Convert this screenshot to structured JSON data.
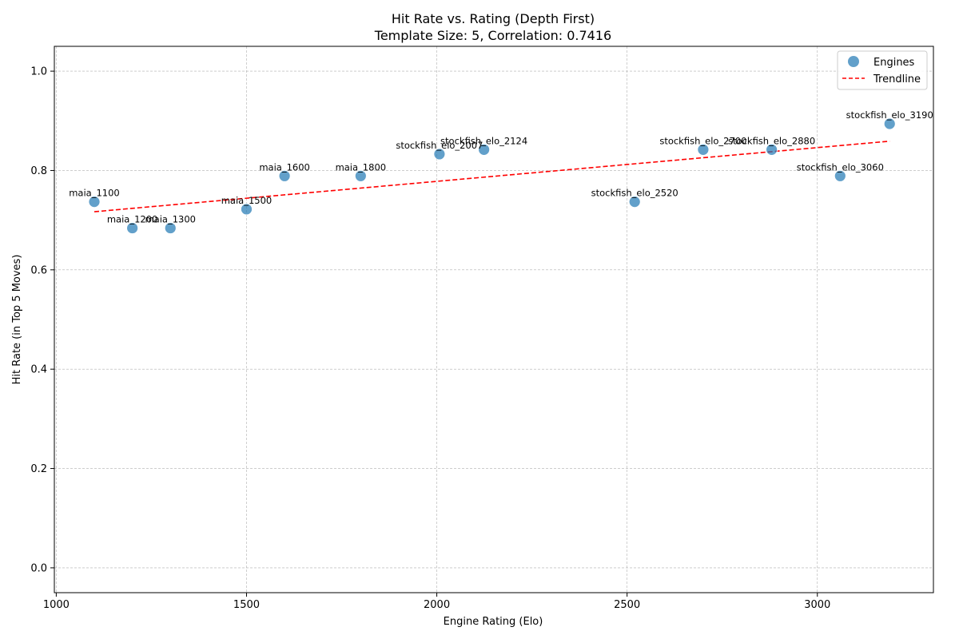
{
  "chart_data": {
    "type": "scatter",
    "title": "Hit Rate vs. Rating (Depth First)",
    "subtitle": "Template Size: 5, Correlation: 0.7416",
    "xlabel": "Engine Rating (Elo)",
    "ylabel": "Hit Rate (in Top 5 Moves)",
    "xlim": [
      995,
      3305
    ],
    "ylim": [
      -0.05,
      1.05
    ],
    "xticks": [
      1000,
      1500,
      2000,
      2500,
      3000
    ],
    "yticks": [
      0.0,
      0.2,
      0.4,
      0.6,
      0.8,
      1.0
    ],
    "grid": true,
    "legend_position": "top-right",
    "legend": [
      "Engines",
      "Trendline"
    ],
    "colors": {
      "points": "#1f77b4",
      "trendline": "#ff0000"
    },
    "points": [
      {
        "label": "maia_1100",
        "x": 1100,
        "y": 0.737
      },
      {
        "label": "maia_1200",
        "x": 1200,
        "y": 0.684
      },
      {
        "label": "maia_1300",
        "x": 1300,
        "y": 0.684
      },
      {
        "label": "maia_1500",
        "x": 1500,
        "y": 0.722
      },
      {
        "label": "maia_1600",
        "x": 1600,
        "y": 0.789
      },
      {
        "label": "maia_1800",
        "x": 1800,
        "y": 0.789
      },
      {
        "label": "stockfish_elo_2007",
        "x": 2007,
        "y": 0.833
      },
      {
        "label": "stockfish_elo_2124",
        "x": 2124,
        "y": 0.842
      },
      {
        "label": "stockfish_elo_2520",
        "x": 2520,
        "y": 0.737
      },
      {
        "label": "stockfish_elo_2700",
        "x": 2700,
        "y": 0.842
      },
      {
        "label": "stockfish_elo_2880",
        "x": 2880,
        "y": 0.842
      },
      {
        "label": "stockfish_elo_3060",
        "x": 3060,
        "y": 0.789
      },
      {
        "label": "stockfish_elo_3190",
        "x": 3190,
        "y": 0.894
      }
    ],
    "trendline": {
      "x": [
        1100,
        3190
      ],
      "y": [
        0.717,
        0.859
      ]
    }
  }
}
